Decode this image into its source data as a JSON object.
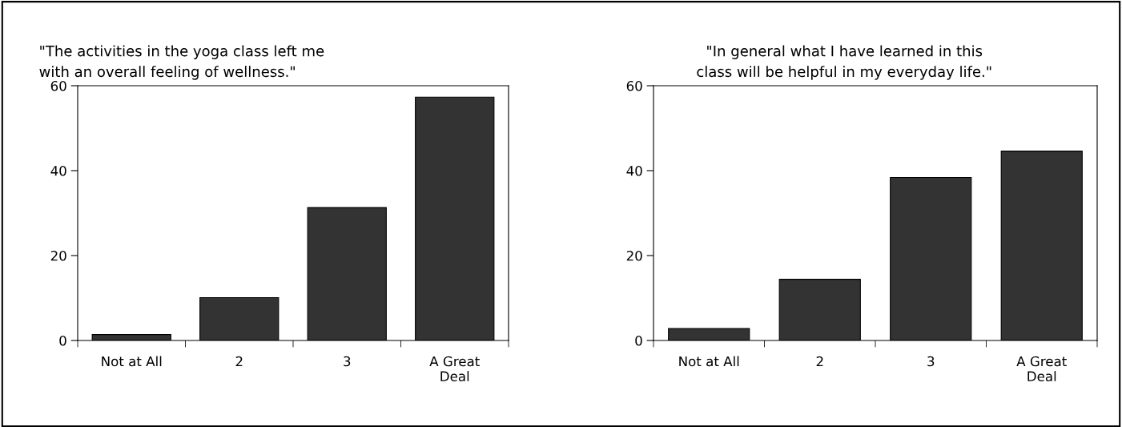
{
  "chart_data": [
    {
      "type": "bar",
      "title": "\"The activities in the yoga class left me\nwith an overall feeling of wellness.\"",
      "categories": [
        "Not at All",
        "2",
        "3",
        "A Great\nDeal"
      ],
      "values": [
        1.4,
        10.1,
        31.3,
        57.3
      ],
      "color": "#333333",
      "ylim": [
        0,
        60
      ],
      "yticks": [
        0,
        20,
        40,
        60
      ],
      "grid": false,
      "legend": false
    },
    {
      "type": "bar",
      "title": "\"In general what I have learned in this\nclass will be helpful in my everyday life.\"",
      "categories": [
        "Not at All",
        "2",
        "3",
        "A Great\nDeal"
      ],
      "values": [
        2.8,
        14.4,
        38.4,
        44.6
      ],
      "color": "#333333",
      "ylim": [
        0,
        60
      ],
      "yticks": [
        0,
        20,
        40,
        60
      ],
      "grid": false,
      "legend": false
    }
  ]
}
